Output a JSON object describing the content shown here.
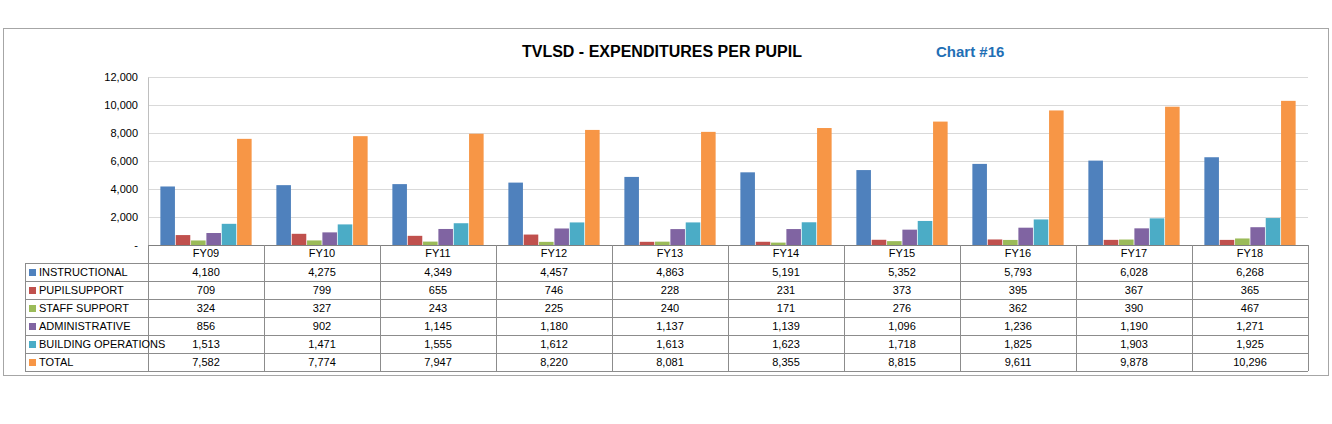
{
  "chart_data": {
    "type": "bar",
    "title": "TVLSD - EXPENDITURES PER PUPIL",
    "annotations": [
      "Chart #16"
    ],
    "categories": [
      "FY09",
      "FY10",
      "FY11",
      "FY12",
      "FY13",
      "FY14",
      "FY15",
      "FY16",
      "FY17",
      "FY18"
    ],
    "series": [
      {
        "name": "INSTRUCTIONAL",
        "color": "#4f81bd",
        "values": [
          4180,
          4275,
          4349,
          4457,
          4863,
          5191,
          5352,
          5793,
          6028,
          6268
        ],
        "value_labels": [
          "4,180",
          "4,275",
          "4,349",
          "4,457",
          "4,863",
          "5,191",
          "5,352",
          "5,793",
          "6,028",
          "6,268"
        ]
      },
      {
        "name": "PUPILSUPPORT",
        "color": "#c0504d",
        "values": [
          709,
          799,
          655,
          746,
          228,
          231,
          373,
          395,
          367,
          365
        ],
        "value_labels": [
          "709",
          "799",
          "655",
          "746",
          "228",
          "231",
          "373",
          "395",
          "367",
          "365"
        ]
      },
      {
        "name": "STAFF SUPPORT",
        "color": "#9bbb59",
        "values": [
          324,
          327,
          243,
          225,
          240,
          171,
          276,
          362,
          390,
          467
        ],
        "value_labels": [
          "324",
          "327",
          "243",
          "225",
          "240",
          "171",
          "276",
          "362",
          "390",
          "467"
        ]
      },
      {
        "name": "ADMINISTRATIVE",
        "color": "#8064a2",
        "values": [
          856,
          902,
          1145,
          1180,
          1137,
          1139,
          1096,
          1236,
          1190,
          1271
        ],
        "value_labels": [
          "856",
          "902",
          "1,145",
          "1,180",
          "1,137",
          "1,139",
          "1,096",
          "1,236",
          "1,190",
          "1,271"
        ]
      },
      {
        "name": "BUILDING OPERATIONS",
        "color": "#4bacc6",
        "values": [
          1513,
          1471,
          1555,
          1612,
          1613,
          1623,
          1718,
          1825,
          1903,
          1925
        ],
        "value_labels": [
          "1,513",
          "1,471",
          "1,555",
          "1,612",
          "1,613",
          "1,623",
          "1,718",
          "1,825",
          "1,903",
          "1,925"
        ]
      },
      {
        "name": "TOTAL",
        "color": "#f79646",
        "values": [
          7582,
          7774,
          7947,
          8220,
          8081,
          8355,
          8815,
          9611,
          9878,
          10296
        ],
        "value_labels": [
          "7,582",
          "7,774",
          "7,947",
          "8,220",
          "8,081",
          "8,355",
          "8,815",
          "9,611",
          "9,878",
          "10,296"
        ]
      }
    ],
    "ylim": [
      0,
      12000
    ],
    "yticks": [
      {
        "value": 0,
        "label": "-"
      },
      {
        "value": 2000,
        "label": "2,000"
      },
      {
        "value": 4000,
        "label": "4,000"
      },
      {
        "value": 6000,
        "label": "6,000"
      },
      {
        "value": 8000,
        "label": "8,000"
      },
      {
        "value": 10000,
        "label": "10,000"
      },
      {
        "value": 12000,
        "label": "12,000"
      }
    ],
    "grid": true,
    "legend": "bottom"
  }
}
